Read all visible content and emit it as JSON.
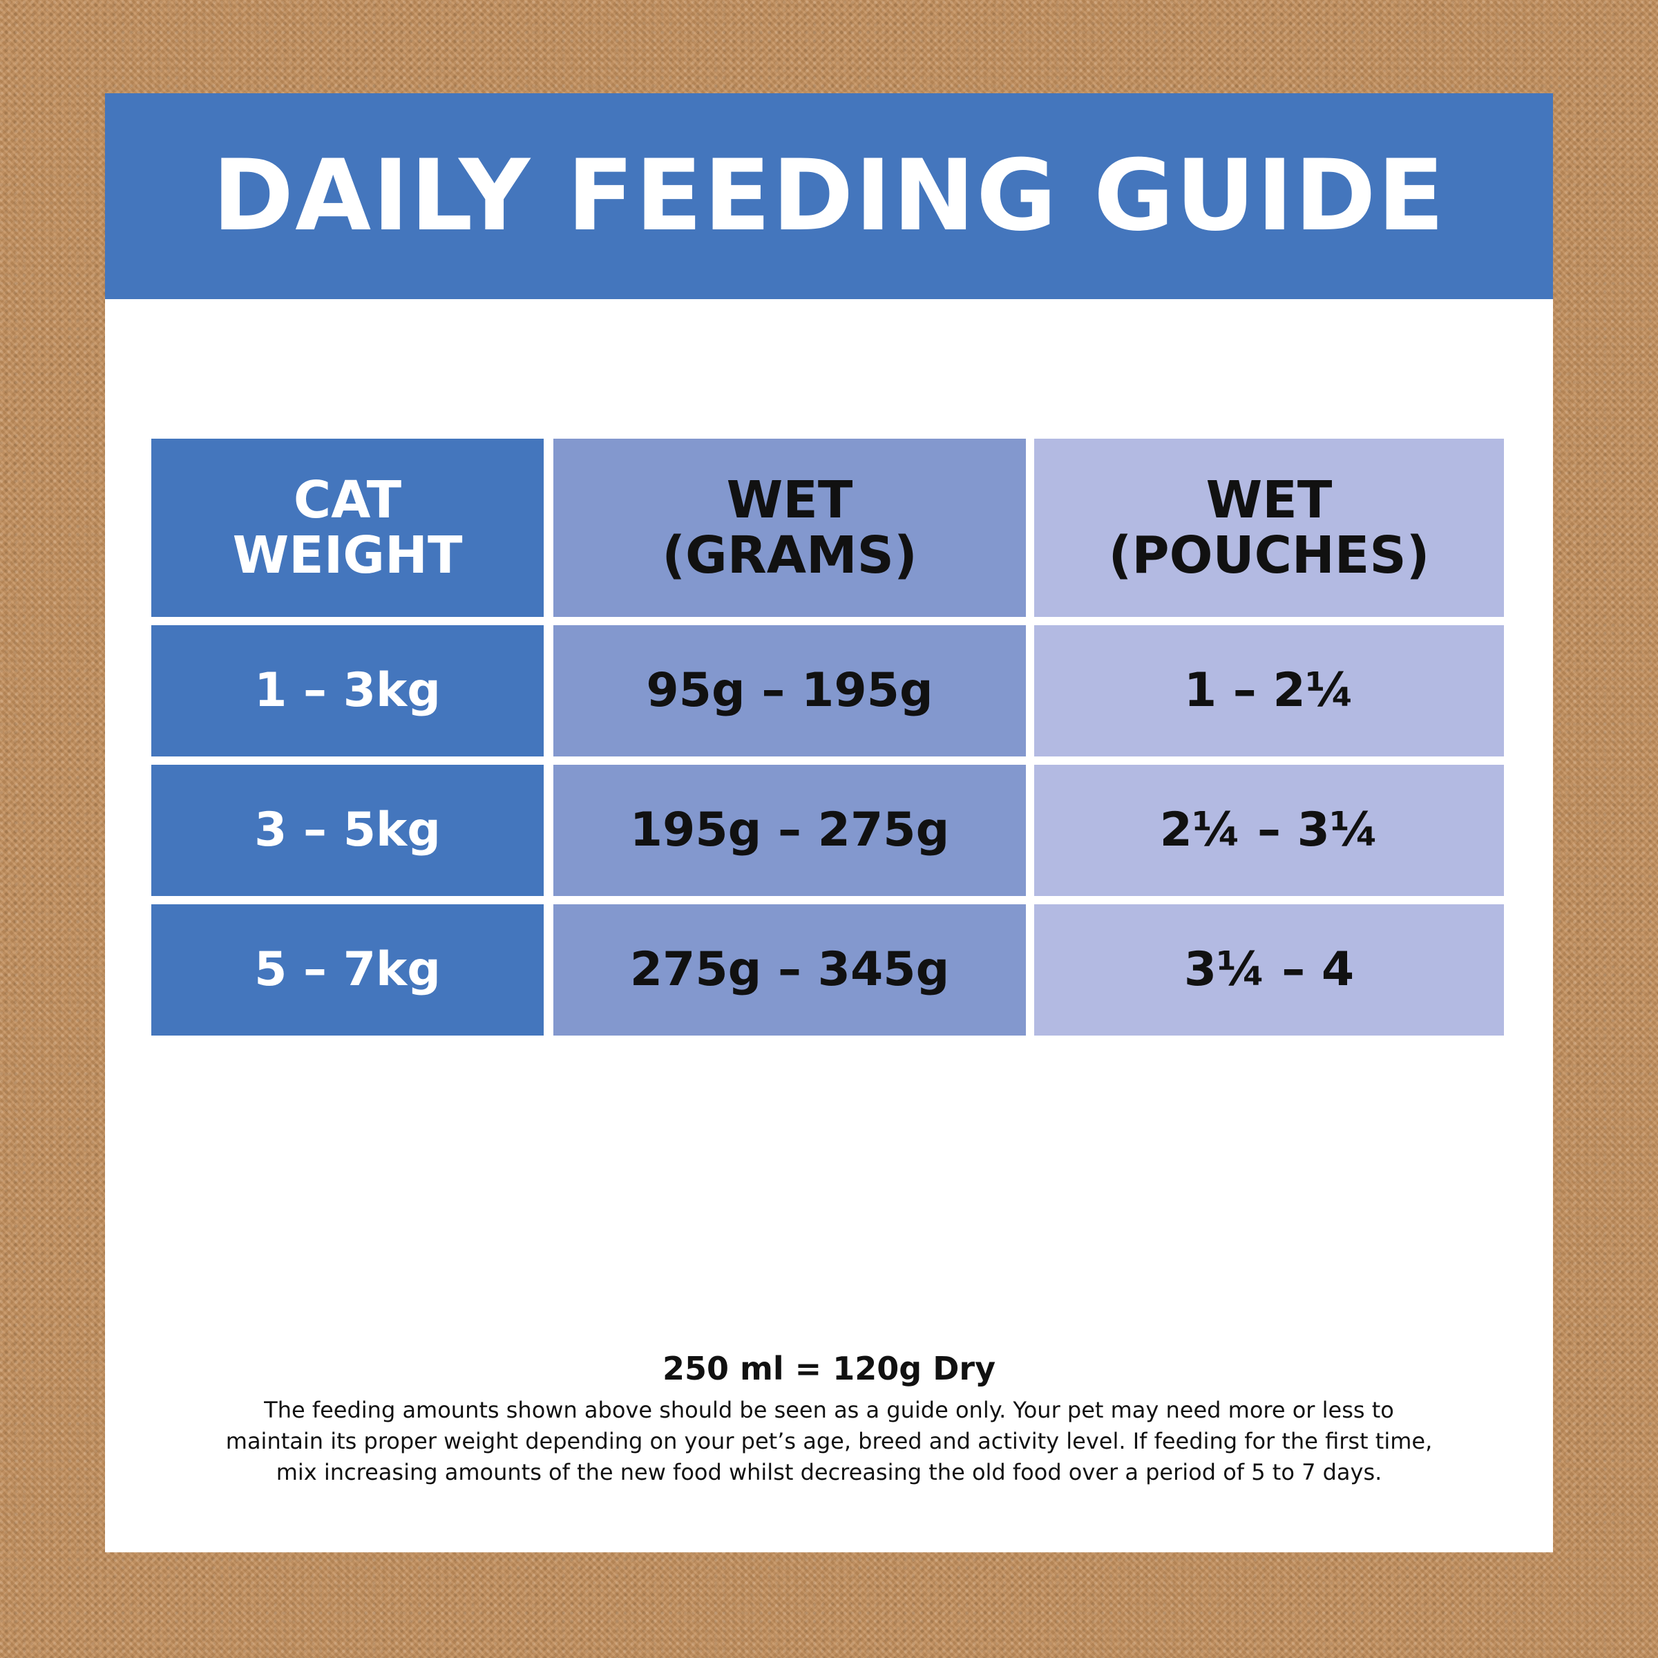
{
  "header": {
    "title": "DAILY FEEDING GUIDE"
  },
  "table": {
    "headers": [
      {
        "line1": "CAT",
        "line2": "WEIGHT"
      },
      {
        "line1": "WET",
        "line2": "(GRAMS)"
      },
      {
        "line1": "WET",
        "line2": "(POUCHES)"
      }
    ],
    "rows": [
      {
        "weight": "1 – 3kg",
        "grams": "95g – 195g",
        "pouches": "1 – 2¼"
      },
      {
        "weight": "3 – 5kg",
        "grams": "195g – 275g",
        "pouches": "2¼ – 3¼"
      },
      {
        "weight": "5 – 7kg",
        "grams": "275g – 345g",
        "pouches": "3¼ – 4"
      }
    ]
  },
  "footer": {
    "conversion": "250 ml = 120g Dry",
    "disclaimer_lines": [
      "The feeding amounts shown above should be seen as a guide only. Your pet may need more or less to",
      "maintain its proper weight depending on your pet’s age, breed and activity level. If feeding for the first time,",
      "mix increasing amounts of the new food whilst decreasing the old food over a period of 5 to 7 days."
    ]
  },
  "colors": {
    "background": "#c4905d",
    "banner_blue": "#4476bd",
    "column_weight": "#4476bd",
    "column_grams": "#8398ce",
    "column_pouches": "#b3bae2"
  }
}
